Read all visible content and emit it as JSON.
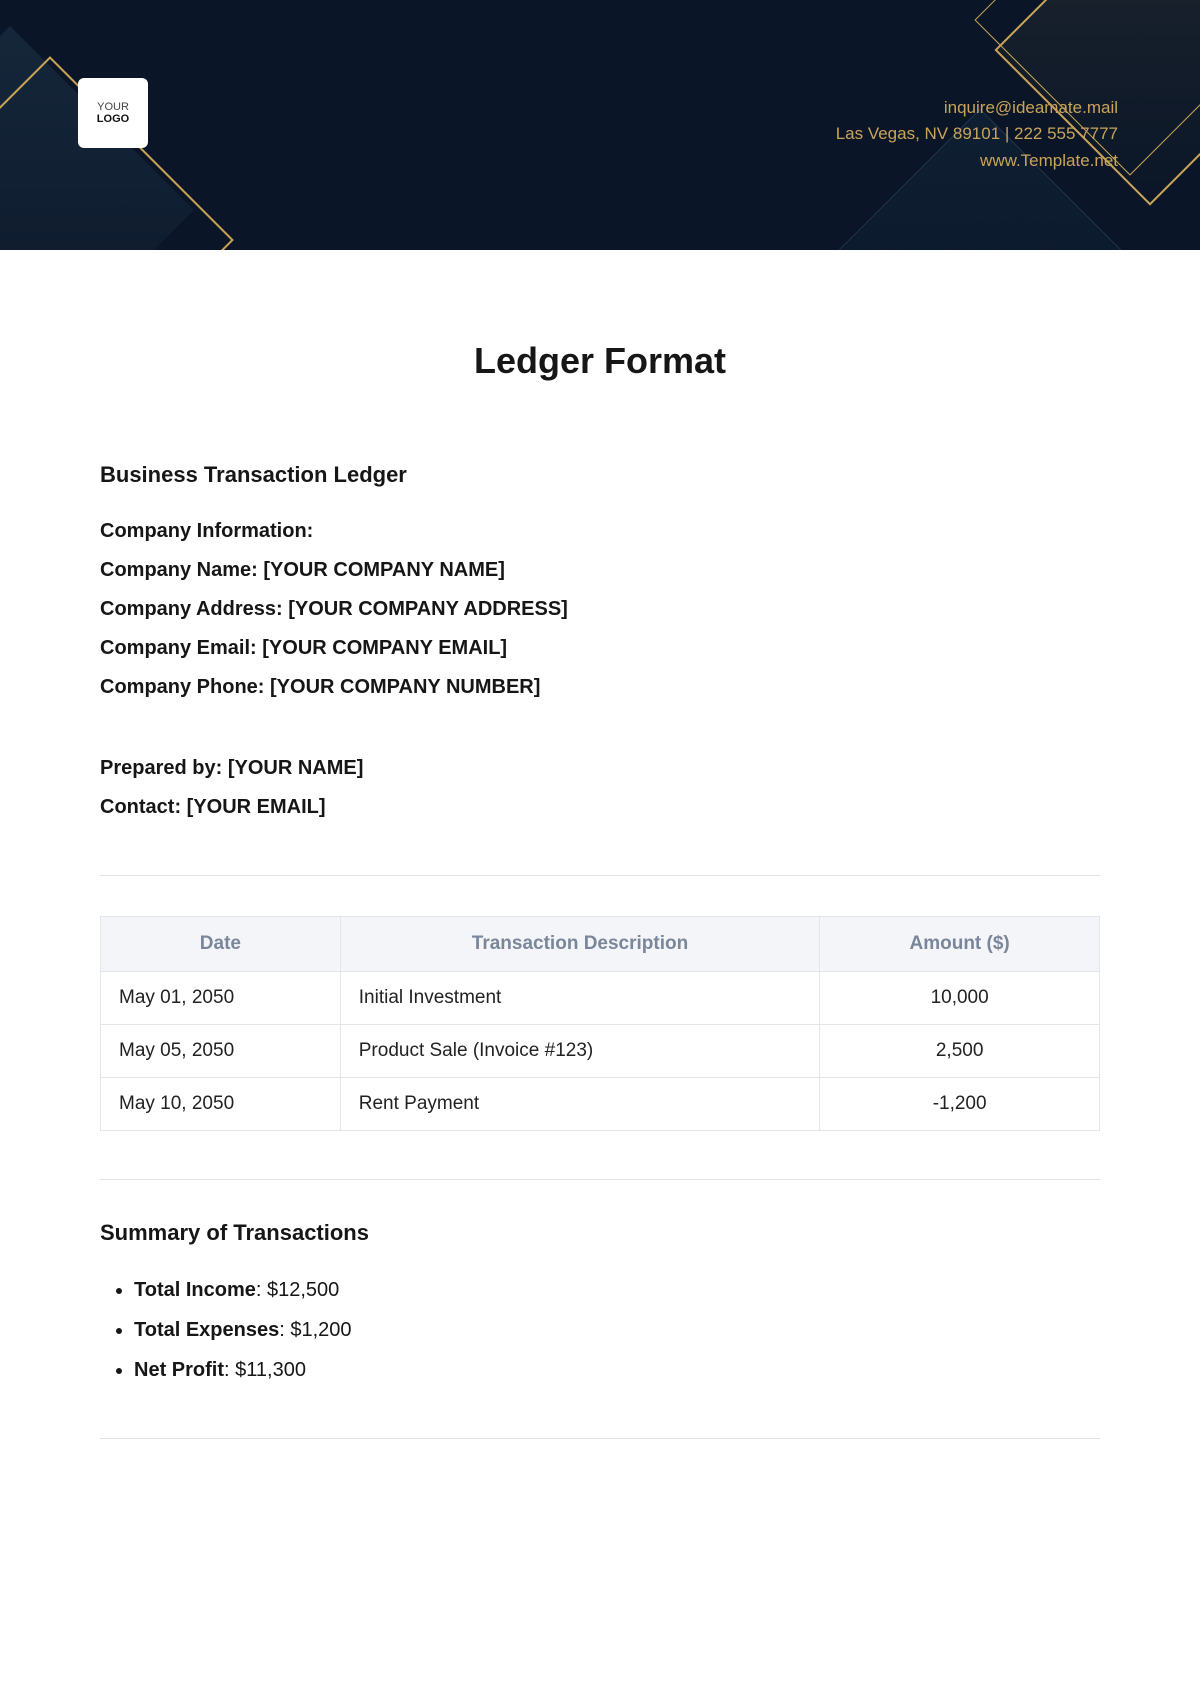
{
  "header": {
    "logo": {
      "line1": "YOUR",
      "line2": "LOGO"
    },
    "contact": {
      "email": "inquire@ideamate.mail",
      "address_phone": "Las Vegas, NV 89101 | 222 555 7777",
      "website": "www.Template.net"
    },
    "colors": {
      "accent": "#c9a458",
      "background": "#0a1628"
    }
  },
  "document": {
    "title": "Ledger Format",
    "subtitle": "Business Transaction Ledger",
    "company_info_heading": "Company Information",
    "company": {
      "name_label": "Company Name",
      "name_value": "[YOUR COMPANY NAME]",
      "address_label": "Company Address",
      "address_value": "[YOUR COMPANY ADDRESS]",
      "email_label": "Company Email",
      "email_value": "[YOUR COMPANY EMAIL]",
      "phone_label": "Company Phone",
      "phone_value": "[YOUR COMPANY NUMBER]"
    },
    "prepared": {
      "by_label": "Prepared by",
      "by_value": "[YOUR NAME]",
      "contact_label": "Contact",
      "contact_value": "[YOUR EMAIL]"
    }
  },
  "ledger_table": {
    "type": "table",
    "columns": [
      "Date",
      "Transaction Description",
      "Amount ($)"
    ],
    "column_widths": [
      "24%",
      "48%",
      "28%"
    ],
    "header_bg": "#f3f5f8",
    "header_text_color": "#7a8699",
    "border_color": "#e3e5e8",
    "rows": [
      {
        "date": "May 01, 2050",
        "desc": "Initial Investment",
        "amount": "10,000"
      },
      {
        "date": "May 05, 2050",
        "desc": "Product Sale (Invoice #123)",
        "amount": "2,500"
      },
      {
        "date": "May 10, 2050",
        "desc": "Rent Payment",
        "amount": "-1,200"
      }
    ]
  },
  "summary": {
    "heading": "Summary of Transactions",
    "items": [
      {
        "label": "Total Income",
        "value": "$12,500"
      },
      {
        "label": "Total Expenses",
        "value": "$1,200"
      },
      {
        "label": "Net Profit",
        "value": "$11,300"
      }
    ]
  }
}
